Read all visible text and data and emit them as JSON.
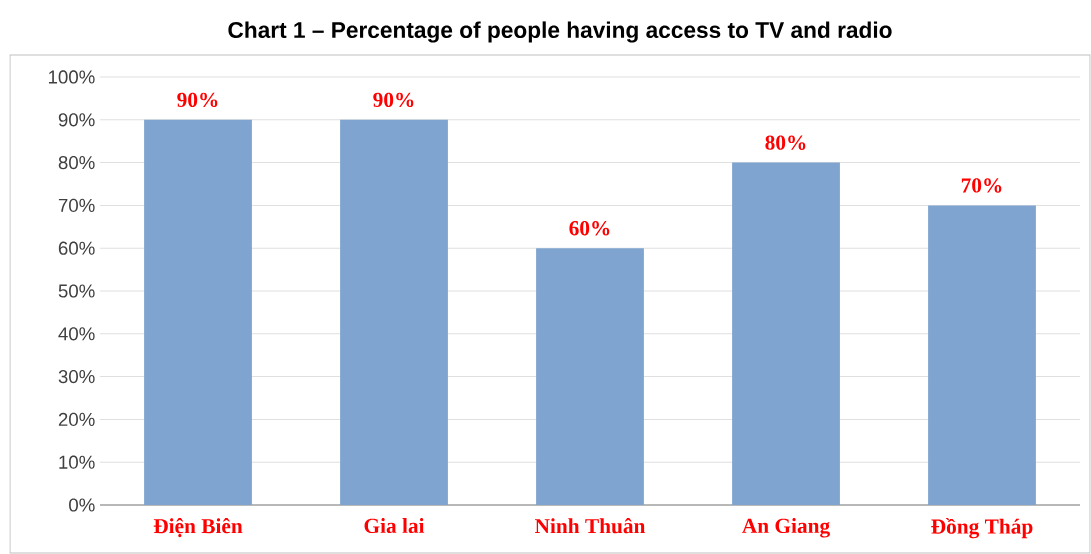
{
  "chart_data": {
    "type": "bar",
    "title": "Chart 1 – Percentage of people having access to TV and radio",
    "categories": [
      "Điện Biên",
      "Gia lai",
      "Ninh Thuân",
      "An Giang",
      "Đồng Tháp"
    ],
    "values": [
      90,
      90,
      60,
      80,
      70
    ],
    "value_labels": [
      "90%",
      "90%",
      "60%",
      "80%",
      "70%"
    ],
    "color": "#7ea4cf",
    "ylim": [
      0,
      100
    ],
    "yticks": [
      {
        "value": 0,
        "label": "0%"
      },
      {
        "value": 10,
        "label": "10%"
      },
      {
        "value": 20,
        "label": "20%"
      },
      {
        "value": 30,
        "label": "30%"
      },
      {
        "value": 40,
        "label": "40%"
      },
      {
        "value": 50,
        "label": "50%"
      },
      {
        "value": 60,
        "label": "60%"
      },
      {
        "value": 70,
        "label": "70%"
      },
      {
        "value": 80,
        "label": "80%"
      },
      {
        "value": 90,
        "label": "90%"
      },
      {
        "value": 100,
        "label": "100%"
      }
    ],
    "grid": "y"
  }
}
